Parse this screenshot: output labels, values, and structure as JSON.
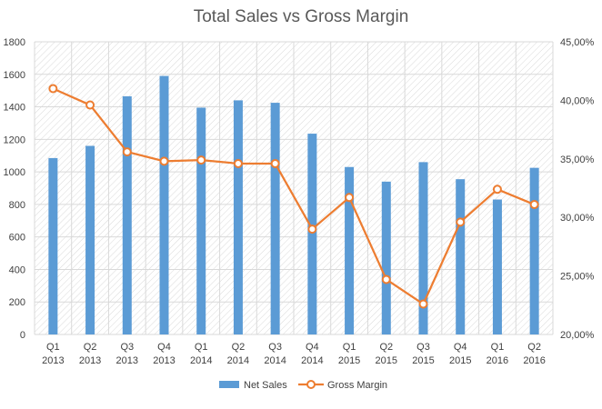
{
  "chart_data": {
    "type": "bar",
    "title": "Total Sales vs Gross Margin",
    "categories": [
      [
        "Q1",
        "2013"
      ],
      [
        "Q2",
        "2013"
      ],
      [
        "Q3",
        "2013"
      ],
      [
        "Q4",
        "2013"
      ],
      [
        "Q1",
        "2014"
      ],
      [
        "Q2",
        "2014"
      ],
      [
        "Q3",
        "2014"
      ],
      [
        "Q4",
        "2014"
      ],
      [
        "Q1",
        "2015"
      ],
      [
        "Q2",
        "2015"
      ],
      [
        "Q3",
        "2015"
      ],
      [
        "Q4",
        "2015"
      ],
      [
        "Q1",
        "2016"
      ],
      [
        "Q2",
        "2016"
      ]
    ],
    "series": [
      {
        "name": "Net Sales",
        "type": "bar",
        "axis": "left",
        "color": "#5b9bd5",
        "values": [
          1085,
          1160,
          1465,
          1590,
          1395,
          1440,
          1425,
          1235,
          1030,
          940,
          1060,
          955,
          830,
          1025
        ]
      },
      {
        "name": "Gross Margin",
        "type": "line",
        "axis": "right",
        "color": "#ed7d31",
        "values": [
          0.41,
          0.396,
          0.356,
          0.348,
          0.349,
          0.346,
          0.346,
          0.29,
          0.317,
          0.247,
          0.226,
          0.296,
          0.324,
          0.311
        ]
      }
    ],
    "y_left": {
      "min": 0,
      "max": 1800,
      "ticks": [
        "0",
        "200",
        "400",
        "600",
        "800",
        "1000",
        "1200",
        "1400",
        "1600",
        "1800"
      ]
    },
    "y_right": {
      "min": 0.2,
      "max": 0.45,
      "ticks": [
        "20,00%",
        "25,00%",
        "30,00%",
        "35,00%",
        "40,00%",
        "45,00%"
      ]
    },
    "grid": true,
    "legend_position": "bottom"
  }
}
